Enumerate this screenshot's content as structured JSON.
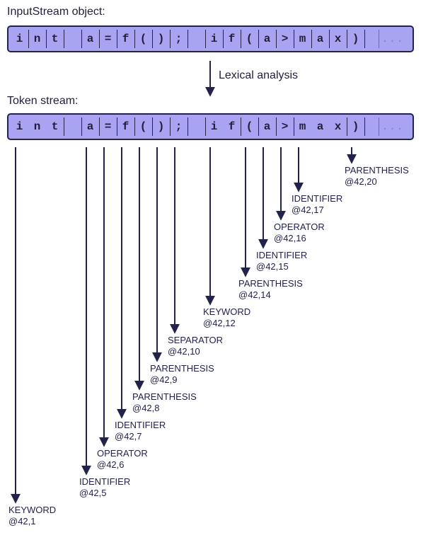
{
  "input_title": "InputStream object:",
  "token_title": "Token stream:",
  "lexical_label": "Lexical analysis",
  "ellipsis": "...",
  "input_chars": [
    "i",
    "n",
    "t",
    " ",
    "a",
    "=",
    "f",
    "(",
    ")",
    ";",
    " ",
    "i",
    "f",
    "(",
    "a",
    ">",
    "m",
    "a",
    "x",
    ")"
  ],
  "token_groups": [
    {
      "chars": [
        "i",
        "n",
        "t"
      ]
    },
    {
      "chars": [
        " "
      ]
    },
    {
      "chars": [
        "a"
      ]
    },
    {
      "chars": [
        "="
      ]
    },
    {
      "chars": [
        "f"
      ]
    },
    {
      "chars": [
        "("
      ]
    },
    {
      "chars": [
        ")"
      ]
    },
    {
      "chars": [
        ";"
      ]
    },
    {
      "chars": [
        " "
      ]
    },
    {
      "chars": [
        "i",
        "f"
      ]
    },
    {
      "chars": [
        "("
      ]
    },
    {
      "chars": [
        "a"
      ]
    },
    {
      "chars": [
        ">"
      ]
    },
    {
      "chars": [
        "m",
        "a",
        "x"
      ]
    },
    {
      "chars": [
        ")"
      ]
    }
  ],
  "tokens": [
    {
      "type": "KEYWORD",
      "pos": "@42,1"
    },
    {
      "type": "IDENTIFIER",
      "pos": "@42,5"
    },
    {
      "type": "OPERATOR",
      "pos": "@42,6"
    },
    {
      "type": "IDENTIFIER",
      "pos": "@42,7"
    },
    {
      "type": "PARENTHESIS",
      "pos": "@42,8"
    },
    {
      "type": "PARENTHESIS",
      "pos": "@42,9"
    },
    {
      "type": "SEPARATOR",
      "pos": "@42,10"
    },
    {
      "type": "KEYWORD",
      "pos": "@42,12"
    },
    {
      "type": "PARENTHESIS",
      "pos": "@42,14"
    },
    {
      "type": "IDENTIFIER",
      "pos": "@42,15"
    },
    {
      "type": "OPERATOR",
      "pos": "@42,16"
    },
    {
      "type": "IDENTIFIER",
      "pos": "@42,17"
    },
    {
      "type": "PARENTHESIS",
      "pos": "@42,20"
    }
  ]
}
